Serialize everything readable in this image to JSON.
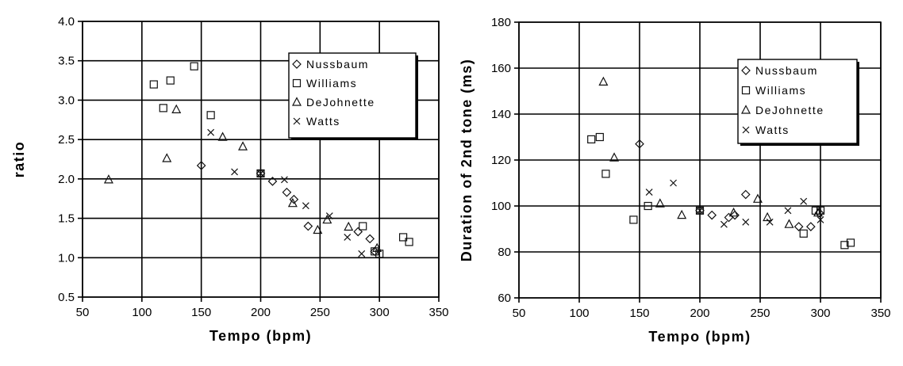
{
  "chart_data": [
    {
      "type": "scatter",
      "xlabel": "Tempo (bpm)",
      "ylabel": "ratio",
      "xlim": [
        50,
        350
      ],
      "ylim": [
        0.5,
        4.0
      ],
      "xticks": [
        "50",
        "100",
        "150",
        "200",
        "250",
        "300",
        "350"
      ],
      "yticks": [
        "0.5",
        "1.0",
        "1.5",
        "2.0",
        "2.5",
        "3.0",
        "3.5",
        "4.0"
      ],
      "grid": true,
      "legend_position": "top-right",
      "series": [
        {
          "name": "Nussbaum",
          "marker": "diamond",
          "points": [
            [
              150,
              2.17
            ],
            [
              200,
              2.07
            ],
            [
              210,
              1.97
            ],
            [
              222,
              1.83
            ],
            [
              228,
              1.74
            ],
            [
              240,
              1.4
            ],
            [
              282,
              1.33
            ],
            [
              292,
              1.24
            ],
            [
              296,
              1.08
            ]
          ]
        },
        {
          "name": "Williams",
          "marker": "square",
          "points": [
            [
              110,
              3.2
            ],
            [
              118,
              2.9
            ],
            [
              124,
              3.25
            ],
            [
              144,
              3.43
            ],
            [
              158,
              2.81
            ],
            [
              200,
              2.07
            ],
            [
              286,
              1.4
            ],
            [
              296,
              1.08
            ],
            [
              300,
              1.05
            ],
            [
              320,
              1.26
            ],
            [
              325,
              1.2
            ]
          ]
        },
        {
          "name": "DeJohnette",
          "marker": "triangle",
          "points": [
            [
              72,
              1.99
            ],
            [
              121,
              2.26
            ],
            [
              129,
              2.88
            ],
            [
              168,
              2.53
            ],
            [
              185,
              2.41
            ],
            [
              227,
              1.69
            ],
            [
              248,
              1.35
            ],
            [
              256,
              1.48
            ],
            [
              274,
              1.39
            ],
            [
              298,
              1.12
            ]
          ]
        },
        {
          "name": "Watts",
          "marker": "x",
          "points": [
            [
              158,
              2.59
            ],
            [
              178,
              2.09
            ],
            [
              200,
              2.07
            ],
            [
              220,
              1.99
            ],
            [
              238,
              1.66
            ],
            [
              258,
              1.53
            ],
            [
              273,
              1.26
            ],
            [
              285,
              1.05
            ]
          ]
        }
      ]
    },
    {
      "type": "scatter",
      "xlabel": "Tempo (bpm)",
      "ylabel": "Duration of 2nd tone (ms)",
      "xlim": [
        50,
        350
      ],
      "ylim": [
        60,
        180
      ],
      "xticks": [
        "50",
        "100",
        "150",
        "200",
        "250",
        "300",
        "350"
      ],
      "yticks": [
        "60",
        "80",
        "100",
        "120",
        "140",
        "160",
        "180"
      ],
      "grid": true,
      "legend_position": "top-right",
      "series": [
        {
          "name": "Nussbaum",
          "marker": "diamond",
          "points": [
            [
              150,
              127
            ],
            [
              200,
              98
            ],
            [
              210,
              96
            ],
            [
              224,
              95
            ],
            [
              229,
              96
            ],
            [
              238,
              105
            ],
            [
              282,
              91
            ],
            [
              292,
              91
            ],
            [
              299,
              97
            ]
          ]
        },
        {
          "name": "Williams",
          "marker": "square",
          "points": [
            [
              110,
              129
            ],
            [
              117,
              130
            ],
            [
              122,
              114
            ],
            [
              145,
              94
            ],
            [
              157,
              100
            ],
            [
              200,
              98
            ],
            [
              286,
              88
            ],
            [
              296,
              98
            ],
            [
              300,
              98
            ],
            [
              320,
              83
            ],
            [
              325,
              84
            ]
          ]
        },
        {
          "name": "DeJohnette",
          "marker": "triangle",
          "points": [
            [
              120,
              154
            ],
            [
              129,
              121
            ],
            [
              167,
              101
            ],
            [
              185,
              96
            ],
            [
              228,
              97
            ],
            [
              248,
              103
            ],
            [
              256,
              95
            ],
            [
              274,
              92
            ],
            [
              298,
              97
            ]
          ]
        },
        {
          "name": "Watts",
          "marker": "x",
          "points": [
            [
              158,
              106
            ],
            [
              178,
              110
            ],
            [
              200,
              98
            ],
            [
              220,
              92
            ],
            [
              238,
              93
            ],
            [
              258,
              93
            ],
            [
              273,
              98
            ],
            [
              286,
              102
            ],
            [
              300,
              94
            ]
          ]
        }
      ]
    }
  ]
}
